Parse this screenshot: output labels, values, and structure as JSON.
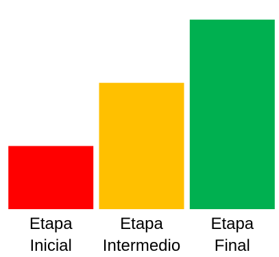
{
  "chart_data": {
    "type": "bar",
    "categories": [
      "Etapa Inicial",
      "Etapa Intermedio",
      "Etapa Final"
    ],
    "category_label_lines": [
      [
        "Etapa",
        "Inicial"
      ],
      [
        "Etapa",
        "Intermedio"
      ],
      [
        "Etapa",
        "Final"
      ]
    ],
    "values": [
      1,
      2,
      3
    ],
    "colors": [
      "#ff0000",
      "#ffc000",
      "#00b050"
    ],
    "ylim": [
      0,
      3.3
    ],
    "title": "",
    "xlabel": "",
    "ylabel": "",
    "grid": false,
    "legend": "none"
  }
}
